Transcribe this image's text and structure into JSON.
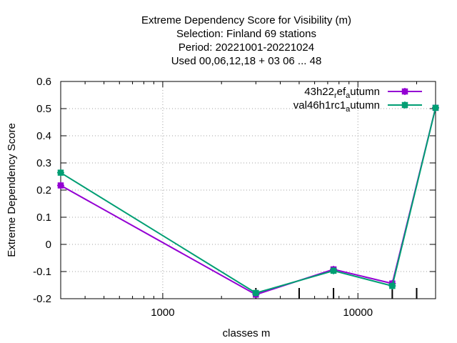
{
  "chart_data": {
    "type": "line",
    "title_lines": [
      "Extreme Dependency Score  for Visibility (m)",
      "Selection: Finland     69 stations",
      "Period: 20221001-20221024",
      "Used  00,06,12,18  + 03 06 ... 48"
    ],
    "xlabel": "classes m",
    "ylabel": "Extreme Dependency Score",
    "x_scale": "log",
    "xlim": [
      300,
      25000
    ],
    "ylim": [
      -0.2,
      0.6
    ],
    "x_ticks": [
      {
        "value": 1000,
        "label": "1000"
      },
      {
        "value": 10000,
        "label": "10000"
      }
    ],
    "y_ticks": [
      {
        "value": -0.2,
        "label": "-0.2"
      },
      {
        "value": -0.1,
        "label": "-0.1"
      },
      {
        "value": 0,
        "label": "0"
      },
      {
        "value": 0.1,
        "label": "0.1"
      },
      {
        "value": 0.2,
        "label": "0.2"
      },
      {
        "value": 0.3,
        "label": "0.3"
      },
      {
        "value": 0.4,
        "label": "0.4"
      },
      {
        "value": 0.5,
        "label": "0.5"
      },
      {
        "value": 0.6,
        "label": "0.6"
      }
    ],
    "class_marks": [
      3000,
      5000,
      7500,
      15000,
      20000
    ],
    "grid": true,
    "legend_position": "top-right",
    "series": [
      {
        "name_parts": [
          "43h22",
          "r",
          "ef",
          "a",
          "utumn"
        ],
        "color": "#9400d3",
        "x": [
          300,
          3000,
          7500,
          15000,
          25000
        ],
        "y": [
          0.217,
          -0.185,
          -0.092,
          -0.144,
          0.503
        ]
      },
      {
        "name_parts": [
          "val46h1rc1",
          "a",
          "utumn"
        ],
        "color": "#009e73",
        "x": [
          300,
          3000,
          7500,
          15000,
          25000
        ],
        "y": [
          0.264,
          -0.179,
          -0.097,
          -0.153,
          0.503
        ]
      }
    ]
  }
}
